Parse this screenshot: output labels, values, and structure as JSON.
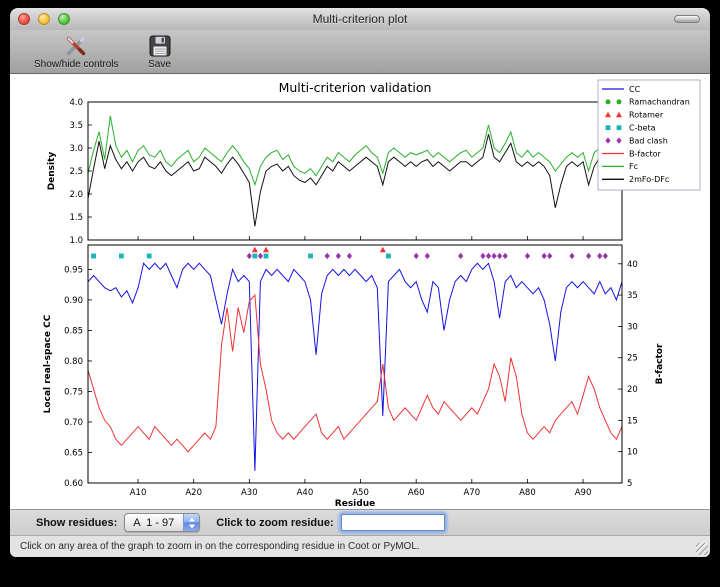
{
  "window": {
    "title": "Multi-criterion plot"
  },
  "toolbar": {
    "buttons": [
      {
        "label": "Show/hide controls"
      },
      {
        "label": "Save"
      }
    ]
  },
  "chart_data": [
    {
      "type": "line",
      "title": "Multi-criterion validation",
      "ylabel": "Density",
      "ylim": [
        1.0,
        4.0
      ],
      "yticks": [
        1.0,
        1.5,
        2.0,
        2.5,
        3.0,
        3.5,
        4.0
      ],
      "x_range": [
        1,
        97
      ],
      "series": [
        {
          "name": "Fc",
          "color": "#2ab02a",
          "values": [
            2.45,
            2.95,
            3.35,
            2.75,
            3.7,
            3.05,
            2.8,
            2.95,
            2.7,
            2.95,
            3.05,
            2.85,
            2.8,
            2.95,
            2.7,
            2.6,
            2.75,
            2.85,
            2.95,
            2.7,
            2.8,
            3.0,
            2.9,
            2.8,
            2.7,
            2.9,
            3.05,
            2.9,
            2.7,
            2.55,
            2.2,
            2.6,
            2.8,
            2.9,
            2.95,
            2.75,
            2.85,
            2.6,
            2.5,
            2.45,
            2.55,
            2.4,
            2.6,
            2.8,
            2.7,
            2.9,
            2.8,
            2.7,
            2.85,
            2.95,
            3.05,
            2.9,
            2.8,
            2.45,
            2.9,
            3.0,
            2.9,
            2.8,
            2.9,
            2.85,
            2.9,
            2.95,
            2.8,
            2.9,
            2.8,
            2.7,
            2.8,
            2.9,
            2.95,
            2.8,
            2.9,
            3.0,
            3.5,
            3.0,
            2.9,
            3.1,
            3.35,
            2.9,
            2.8,
            2.95,
            2.8,
            2.9,
            2.8,
            2.7,
            2.5,
            2.65,
            2.8,
            2.9,
            2.8,
            2.9,
            2.5,
            2.9,
            3.0,
            2.9,
            3.3,
            3.1,
            2.9
          ]
        },
        {
          "name": "2mFo-DFc",
          "color": "#111111",
          "values": [
            1.9,
            2.55,
            3.15,
            2.55,
            3.05,
            2.75,
            2.55,
            2.7,
            2.5,
            2.7,
            2.8,
            2.6,
            2.55,
            2.7,
            2.5,
            2.4,
            2.5,
            2.6,
            2.7,
            2.5,
            2.55,
            2.8,
            2.7,
            2.6,
            2.45,
            2.65,
            2.8,
            2.65,
            2.45,
            2.25,
            1.3,
            2.05,
            2.5,
            2.6,
            2.65,
            2.5,
            2.6,
            2.4,
            2.3,
            2.25,
            2.35,
            2.2,
            2.4,
            2.6,
            2.5,
            2.7,
            2.6,
            2.5,
            2.6,
            2.7,
            2.8,
            2.7,
            2.6,
            2.2,
            2.7,
            2.8,
            2.7,
            2.6,
            2.7,
            2.6,
            2.7,
            2.75,
            2.6,
            2.7,
            2.6,
            2.5,
            2.6,
            2.7,
            2.7,
            2.6,
            2.7,
            2.8,
            3.3,
            2.8,
            2.7,
            2.9,
            3.1,
            2.7,
            2.6,
            2.7,
            2.6,
            2.7,
            2.6,
            2.4,
            1.7,
            2.2,
            2.6,
            2.7,
            2.6,
            2.7,
            2.2,
            2.6,
            2.8,
            2.7,
            3.0,
            2.8,
            2.6
          ]
        }
      ]
    },
    {
      "type": "line+scatter",
      "xlabel": "Residue",
      "ylabel": "Local real-space CC",
      "ylabel_right": "B-factor",
      "ylim": [
        0.6,
        0.99
      ],
      "yticks": [
        0.6,
        0.65,
        0.7,
        0.75,
        0.8,
        0.85,
        0.9,
        0.95
      ],
      "ylim_right": [
        5,
        43
      ],
      "yticks_right": [
        5,
        10,
        15,
        20,
        25,
        30,
        35,
        40
      ],
      "xticks": [
        {
          "pos": 10,
          "label": "A10"
        },
        {
          "pos": 20,
          "label": "A20"
        },
        {
          "pos": 30,
          "label": "A30"
        },
        {
          "pos": 40,
          "label": "A40"
        },
        {
          "pos": 50,
          "label": "A50"
        },
        {
          "pos": 60,
          "label": "A60"
        },
        {
          "pos": 70,
          "label": "A70"
        },
        {
          "pos": 80,
          "label": "A80"
        },
        {
          "pos": 90,
          "label": "A90"
        }
      ],
      "series": [
        {
          "name": "CC",
          "color": "#1414e0",
          "axis": "left",
          "values": [
            0.93,
            0.94,
            0.93,
            0.92,
            0.915,
            0.92,
            0.905,
            0.915,
            0.895,
            0.92,
            0.96,
            0.95,
            0.96,
            0.95,
            0.96,
            0.94,
            0.92,
            0.95,
            0.96,
            0.95,
            0.96,
            0.95,
            0.94,
            0.9,
            0.86,
            0.91,
            0.95,
            0.93,
            0.94,
            0.93,
            0.62,
            0.93,
            0.95,
            0.94,
            0.95,
            0.94,
            0.93,
            0.95,
            0.94,
            0.93,
            0.9,
            0.81,
            0.91,
            0.94,
            0.95,
            0.94,
            0.95,
            0.94,
            0.95,
            0.94,
            0.93,
            0.94,
            0.92,
            0.71,
            0.93,
            0.94,
            0.95,
            0.93,
            0.92,
            0.93,
            0.9,
            0.88,
            0.93,
            0.92,
            0.85,
            0.9,
            0.93,
            0.94,
            0.93,
            0.95,
            0.96,
            0.95,
            0.96,
            0.93,
            0.87,
            0.93,
            0.94,
            0.92,
            0.93,
            0.92,
            0.91,
            0.92,
            0.9,
            0.86,
            0.8,
            0.88,
            0.92,
            0.93,
            0.92,
            0.93,
            0.92,
            0.91,
            0.93,
            0.91,
            0.92,
            0.9,
            0.93
          ]
        },
        {
          "name": "B-factor",
          "color": "#ee3333",
          "axis": "right",
          "values": [
            23,
            20,
            17,
            15,
            14,
            12,
            11,
            12,
            13,
            14,
            13,
            12,
            14,
            13,
            12,
            11,
            12,
            11,
            10,
            11,
            12,
            13,
            12,
            14,
            27,
            33,
            26,
            33,
            29,
            34,
            35,
            24,
            20,
            15,
            13,
            12,
            13,
            12,
            13,
            14,
            15,
            16,
            13,
            12,
            13,
            14,
            12,
            13,
            14,
            15,
            16,
            17,
            18,
            24,
            17,
            15,
            16,
            17,
            16,
            15,
            17,
            19,
            17,
            16,
            18,
            17,
            16,
            15,
            16,
            17,
            16,
            18,
            20,
            24,
            22,
            18,
            25,
            22,
            16,
            13,
            12,
            13,
            14,
            13,
            15,
            16,
            17,
            18,
            16,
            19,
            22,
            20,
            17,
            15,
            13,
            12,
            14
          ]
        }
      ],
      "markers": [
        {
          "name": "Ramachandran",
          "shape": "circle",
          "color": "#2ab02a",
          "y": 0.972,
          "x": []
        },
        {
          "name": "Rotamer",
          "shape": "triangle",
          "color": "#ee3333",
          "y": 0.982,
          "x": [
            31,
            33,
            54
          ]
        },
        {
          "name": "C-beta",
          "shape": "square",
          "color": "#16b5b5",
          "y": 0.972,
          "x": [
            2,
            7,
            12,
            31,
            33,
            41,
            55
          ]
        },
        {
          "name": "Bad clash",
          "shape": "diamond",
          "color": "#9933aa",
          "y": 0.972,
          "x": [
            30,
            32,
            44,
            46,
            48,
            60,
            62,
            68,
            72,
            73,
            74,
            75,
            76,
            80,
            83,
            84,
            88,
            91,
            93,
            94
          ]
        }
      ],
      "legend": [
        {
          "label": "CC",
          "type": "line",
          "color": "#1414e0"
        },
        {
          "label": "Ramachandran",
          "type": "circle",
          "color": "#2ab02a"
        },
        {
          "label": "Rotamer",
          "type": "triangle",
          "color": "#ee3333"
        },
        {
          "label": "C-beta",
          "type": "square",
          "color": "#16b5b5"
        },
        {
          "label": "Bad clash",
          "type": "diamond",
          "color": "#9933aa"
        },
        {
          "label": "B-factor",
          "type": "line",
          "color": "#ee3333"
        },
        {
          "label": "Fc",
          "type": "line",
          "color": "#2ab02a"
        },
        {
          "label": "2mFo-DFc",
          "type": "line",
          "color": "#111111"
        }
      ]
    }
  ],
  "controls": {
    "show_residues_label": "Show residues:",
    "residue_range": "A  1 - 97",
    "zoom_label": "Click to zoom residue:",
    "zoom_value": ""
  },
  "status": {
    "message": "Click on any area of the graph to zoom in on the corresponding residue in Coot or PyMOL."
  }
}
